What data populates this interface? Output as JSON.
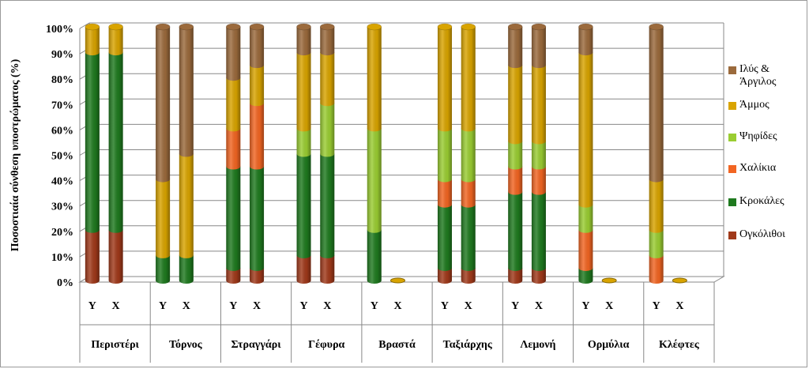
{
  "chart_data": {
    "type": "bar",
    "stacked": true,
    "percent": true,
    "ylabel": "Ποσοστιαία σύνθεση υποστρώματος (%)",
    "ylim": [
      0,
      100
    ],
    "yticks": [
      "0%",
      "10%",
      "20%",
      "30%",
      "40%",
      "50%",
      "60%",
      "70%",
      "80%",
      "90%",
      "100%"
    ],
    "grid": true,
    "legend_position": "right",
    "groups": [
      "Περιστέρι",
      "Τόρνος",
      "Στραγγάρι",
      "Γέφυρα",
      "Βραστά",
      "Ταξιάρχης",
      "Λεμονή",
      "Ορμύλια",
      "Κλέφτες"
    ],
    "subcategories": [
      "Y",
      "X"
    ],
    "series": [
      {
        "name": "Ογκόλιθοι",
        "color": "#a0391a",
        "values": [
          20,
          20,
          0,
          0,
          5,
          5,
          10,
          10,
          0,
          0,
          5,
          5,
          5,
          5,
          0,
          0,
          0,
          0
        ]
      },
      {
        "name": "Κροκάλες",
        "color": "#1f7a1f",
        "values": [
          70,
          70,
          10,
          10,
          40,
          40,
          40,
          40,
          20,
          0,
          25,
          25,
          30,
          30,
          5,
          0,
          0,
          0
        ]
      },
      {
        "name": "Χαλίκια",
        "color": "#f26522",
        "values": [
          0,
          0,
          0,
          0,
          15,
          25,
          0,
          0,
          0,
          0,
          10,
          10,
          10,
          10,
          15,
          0,
          10,
          0
        ]
      },
      {
        "name": "Ψηφίδες",
        "color": "#9acd32",
        "values": [
          0,
          0,
          0,
          0,
          0,
          0,
          10,
          20,
          40,
          0,
          20,
          20,
          10,
          10,
          10,
          0,
          10,
          0
        ]
      },
      {
        "name": "Άμμος",
        "color": "#d9a400",
        "values": [
          10,
          10,
          30,
          40,
          20,
          15,
          30,
          20,
          40,
          0,
          40,
          40,
          30,
          30,
          60,
          0,
          20,
          0
        ]
      },
      {
        "name": "Ιλύς & Άργιλος",
        "color": "#9b6a3c",
        "values": [
          0,
          0,
          60,
          50,
          20,
          15,
          10,
          10,
          0,
          0,
          0,
          0,
          15,
          15,
          10,
          0,
          60,
          0
        ]
      }
    ],
    "legend_order": [
      "Ιλύς & Άργιλος",
      "Άμμος",
      "Ψηφίδες",
      "Χαλίκια",
      "Κροκάλες",
      "Ογκόλιθοι"
    ]
  }
}
